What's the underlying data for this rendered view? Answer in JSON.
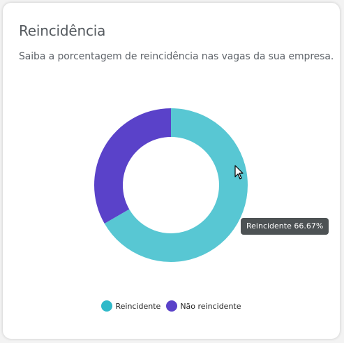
{
  "card": {
    "title": "Reincidência",
    "subtitle": "Saiba a porcentagem de reincidência nas vagas da sua empresa."
  },
  "chart_data": {
    "type": "pie",
    "variant": "donut",
    "title": "",
    "categories": [
      "Reincidente",
      "Não reincidente"
    ],
    "values": [
      66.67,
      33.33
    ],
    "unit": "%",
    "colors": [
      "#58c7d3",
      "#5a42c9"
    ],
    "legend_position": "bottom",
    "tooltip": {
      "category": "Reincidente",
      "text": "Reincidente 66.67%"
    }
  },
  "legend": {
    "items": [
      {
        "label": "Reincidente",
        "color": "#2fb9c9"
      },
      {
        "label": "Não reincidente",
        "color": "#5a42c9"
      }
    ]
  }
}
